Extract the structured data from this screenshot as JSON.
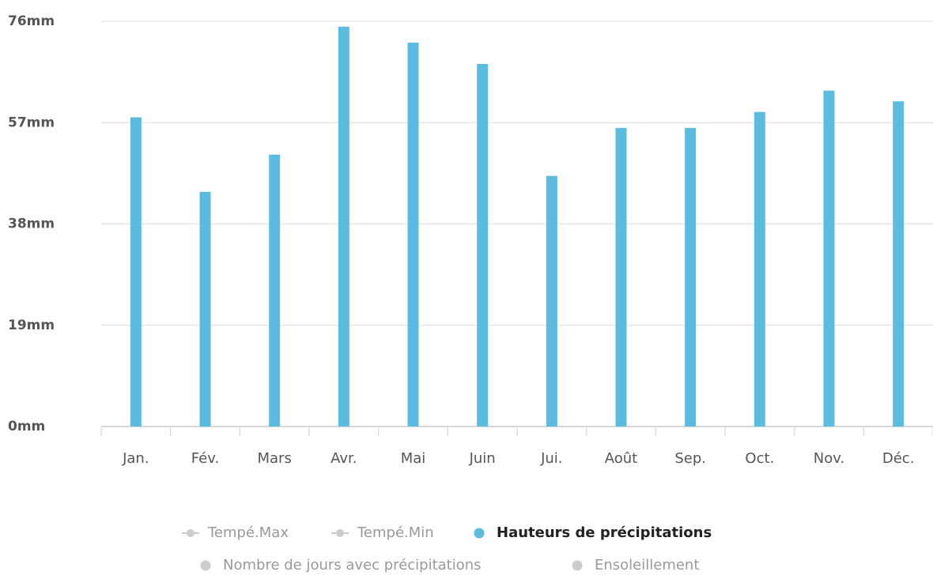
{
  "chart_data": {
    "type": "bar",
    "categories": [
      "Jan.",
      "Fév.",
      "Mars",
      "Avr.",
      "Mai",
      "Juin",
      "Jui.",
      "Août",
      "Sep.",
      "Oct.",
      "Nov.",
      "Déc."
    ],
    "series": [
      {
        "name": "Hauteurs de précipitations",
        "color": "#5bbce0",
        "values": [
          58,
          44,
          51,
          75,
          72,
          68,
          47,
          56,
          56,
          59,
          63,
          61
        ]
      }
    ],
    "hidden_series": [
      {
        "name": "Tempé.Max",
        "symbol": "line"
      },
      {
        "name": "Tempé.Min",
        "symbol": "line"
      },
      {
        "name": "Nombre de jours avec précipitations",
        "symbol": "dot"
      },
      {
        "name": "Ensoleillement",
        "symbol": "dot"
      }
    ],
    "ylim": [
      0,
      76
    ],
    "yticks": [
      {
        "value": 0,
        "label": "0mm"
      },
      {
        "value": 19,
        "label": "19mm"
      },
      {
        "value": 38,
        "label": "38mm"
      },
      {
        "value": 57,
        "label": "57mm"
      },
      {
        "value": 76,
        "label": "76mm"
      }
    ],
    "grid": true
  }
}
